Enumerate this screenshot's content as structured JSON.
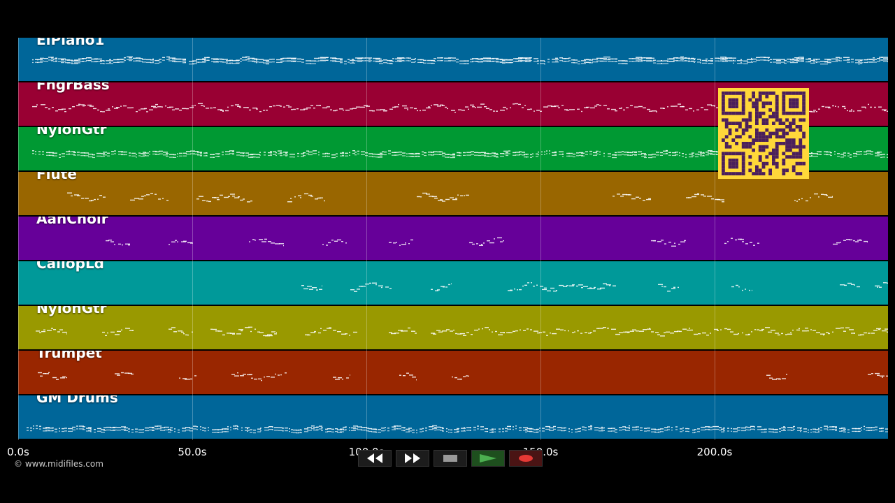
{
  "tracks": [
    {
      "name": "ElPiano1",
      "color": "#006699"
    },
    {
      "name": "FngrBass",
      "color": "#990033"
    },
    {
      "name": "NylonGtr",
      "color": "#009933"
    },
    {
      "name": "Flute",
      "color": "#996600"
    },
    {
      "name": "AahChoir",
      "color": "#660099"
    },
    {
      "name": "CaliopLd",
      "color": "#009999"
    },
    {
      "name": "NylonGtr",
      "color": "#999900"
    },
    {
      "name": "Trumpet",
      "color": "#992600"
    },
    {
      "name": "GM Drums",
      "color": "#006699"
    }
  ],
  "timeline": {
    "ticks": [
      "0.0s",
      "50.0s",
      "100.0s",
      "150.0s",
      "200.0s"
    ]
  },
  "footer": {
    "copyright": "© www.midifiles.com"
  },
  "transport": {
    "buttons": [
      "rewind-icon",
      "fast-forward-icon",
      "stop-icon",
      "play-icon",
      "record-icon"
    ],
    "play_color": "#4caf50",
    "record_color": "#e53935"
  }
}
